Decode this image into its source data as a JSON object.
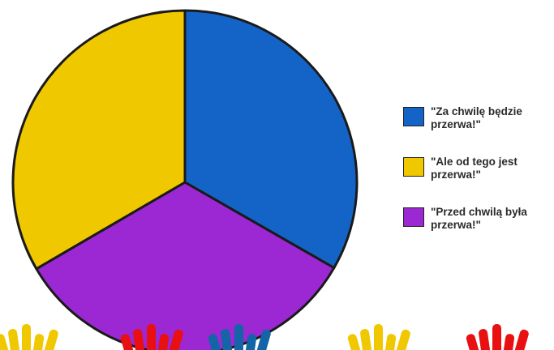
{
  "chart_data": {
    "type": "pie",
    "title": "",
    "slices": [
      {
        "label": "\"Za chwilę będzie przerwa!\"",
        "value": 33.3,
        "color": "#1464c8"
      },
      {
        "label": "\"Przed chwilą była przerwa!\"",
        "value": 33.3,
        "color": "#9b28d2"
      },
      {
        "label": "\"Ale od tego jest przerwa!\"",
        "value": 33.4,
        "color": "#f0c800"
      }
    ],
    "legend": {
      "placement": "right",
      "items": [
        {
          "label": "\"Za chwilę będzie przerwa!\"",
          "color": "#1464c8"
        },
        {
          "label": "\"Ale od tego jest przerwa!\"",
          "color": "#f0c800"
        },
        {
          "label": "\"Przed chwilą była przerwa!\"",
          "color": "#9b28d2"
        }
      ]
    }
  },
  "decoration": {
    "hand_colors": [
      "#f0c800",
      "#e81010",
      "#1464a8",
      "#f0c800",
      "#e81010"
    ]
  }
}
